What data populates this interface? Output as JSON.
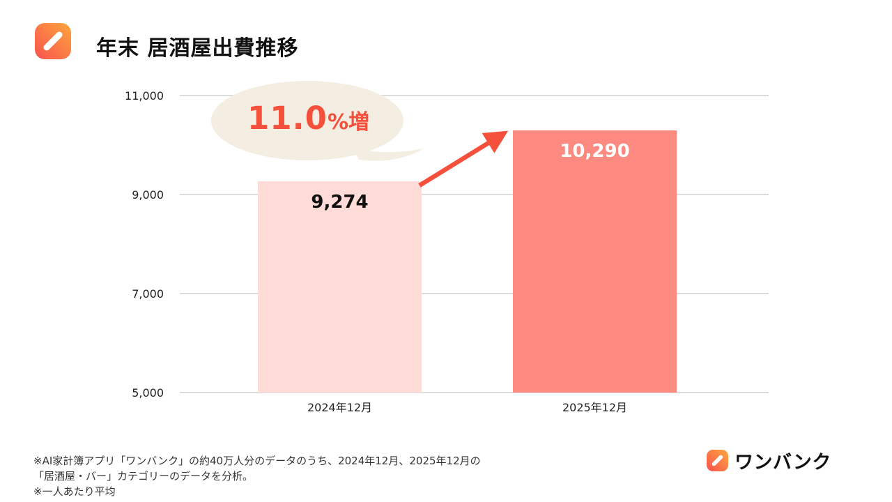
{
  "header": {
    "title": "年末 居酒屋出費推移"
  },
  "chart_data": {
    "type": "bar",
    "title": "年末 居酒屋出費推移",
    "categories": [
      "2024年12月",
      "2025年12月"
    ],
    "values": [
      9274,
      10290
    ],
    "value_labels": [
      "9,274",
      "10,290"
    ],
    "ylim": [
      5000,
      11000
    ],
    "yticks": [
      5000,
      7000,
      9000,
      11000
    ],
    "ytick_labels": [
      "5,000",
      "7,000",
      "9,000",
      "11,000"
    ],
    "xlabel": "",
    "ylabel": "",
    "grid": true,
    "legend": "none",
    "bar_colors": [
      "#ffdcd7",
      "#fc8a80"
    ],
    "value_label_colors": [
      "#111111",
      "#ffffff"
    ],
    "annotation": {
      "value": "11.0",
      "suffix": "%増"
    }
  },
  "footer": {
    "notes": [
      "※AI家計簿アプリ「ワンバンク」の約40万人分のデータのうち、2024年12月、2025年12月の",
      "「居酒屋・バー」カテゴリーのデータを分析。",
      "※一人あたり平均"
    ],
    "brand_name": "ワンバンク"
  },
  "colors": {
    "accent_red": "#f4503c",
    "bar_light": "#ffdcd7",
    "bar_dark": "#fc8a80",
    "bubble_bg": "#f3eee1",
    "icon_gradient_top_right": "#ffa63d",
    "icon_gradient_bottom_left": "#f7524f",
    "gridline": "#dcdcdc"
  }
}
